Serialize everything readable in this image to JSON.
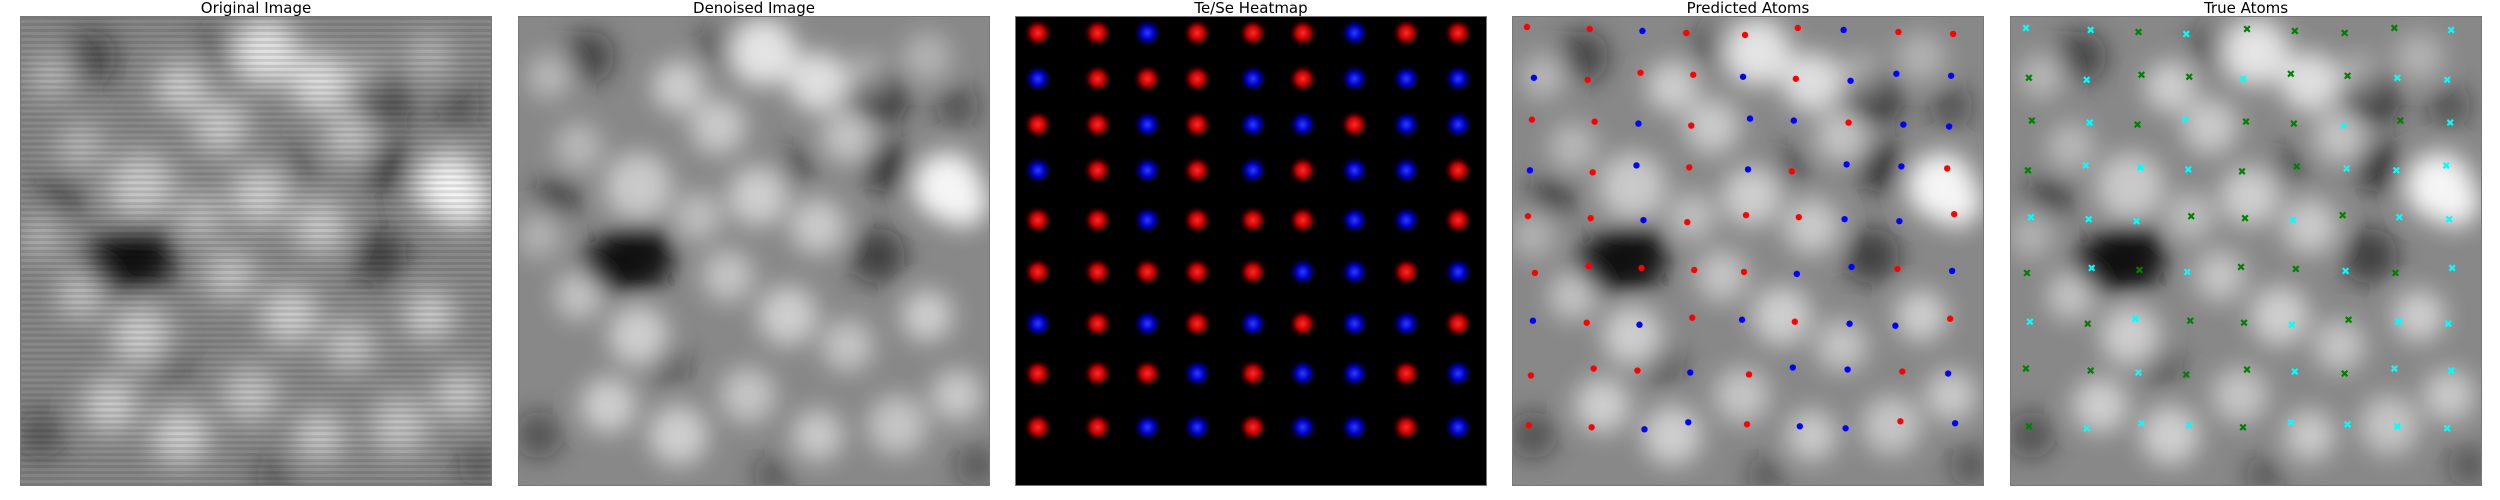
{
  "figure": {
    "panels": [
      {
        "key": "original",
        "title": "Original Image"
      },
      {
        "key": "denoised",
        "title": "Denoised Image"
      },
      {
        "key": "heatmap",
        "title": "Te/Se Heatmap"
      },
      {
        "key": "predicted",
        "title": "Predicted Atoms"
      },
      {
        "key": "true",
        "title": "True Atoms"
      }
    ],
    "colors": {
      "te": "#ff0000",
      "se": "#0000ff",
      "true_te": "#00ffff",
      "true_se": "#008000",
      "heatmap_bg": "#000000"
    },
    "predicted_atoms": {
      "te_marker": "red dot",
      "se_marker": "blue dot"
    },
    "true_atoms": {
      "te_marker": "cyan x",
      "se_marker": "green x"
    }
  }
}
